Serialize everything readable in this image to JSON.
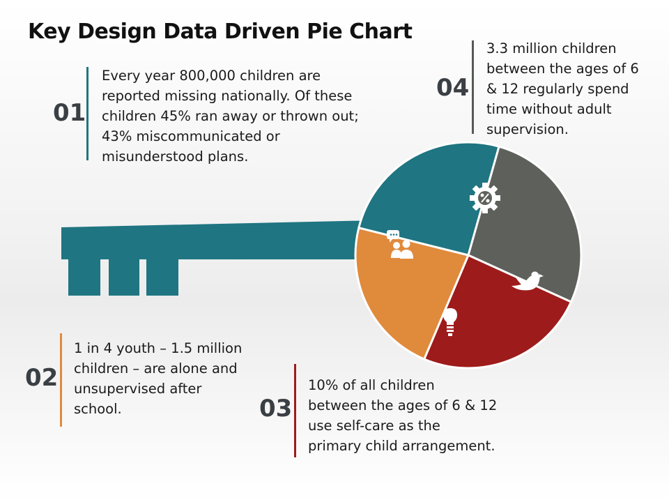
{
  "title": "Key Design Data Driven Pie Chart",
  "items": [
    {
      "number": "01",
      "text": "Every year 800,000 children are\nreported missing nationally. Of these\nchildren 45% ran away or thrown out;\n43% miscommunicated or\nmisunderstood plans.",
      "color": "#1f7581"
    },
    {
      "number": "02",
      "text": "1 in 4 youth – 1.5 million\nchildren – are alone and\nunsupervised after\nschool.",
      "color": "#e08a3c"
    },
    {
      "number": "03",
      "text": "10% of all children\nbetween the ages of 6 & 12\nuse self-care as the\nprimary child arrangement.",
      "color": "#9e1b1b"
    },
    {
      "number": "04",
      "text": "3.3 million children\nbetween the ages of 6\n& 12 regularly spend\ntime without adult\nsupervision.",
      "color": "#555a55"
    }
  ],
  "chart_data": {
    "type": "pie",
    "title": "Key Design Data Driven Pie Chart",
    "slices": [
      {
        "icon": "people-chat-icon",
        "value": 25.5,
        "color": "#1f7581"
      },
      {
        "icon": "gear-percent-icon",
        "value": 27.4,
        "color": "#5e615b"
      },
      {
        "icon": "bird-icon",
        "value": 24.6,
        "color": "#9e1b1b"
      },
      {
        "icon": "lightbulb-icon",
        "value": 22.5,
        "color": "#e08a3c"
      }
    ]
  }
}
